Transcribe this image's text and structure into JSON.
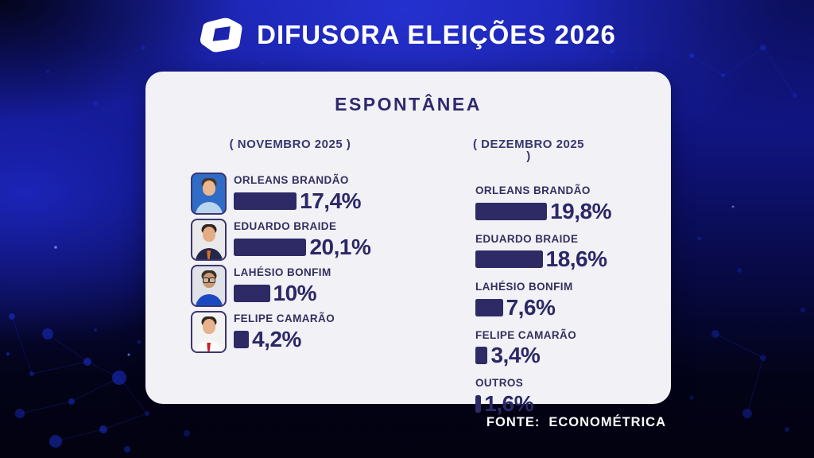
{
  "header": {
    "logo_name": "difusora-logo",
    "title": "DIFUSORA ELEIÇÕES 2026"
  },
  "card": {
    "title": "ESPONTÂNEA",
    "columns": [
      {
        "label": "( NOVEMBRO 2025 )",
        "rows": [
          {
            "name": "ORLEANS BRANDÃO",
            "value": 17.4,
            "value_label": "17,4%",
            "photo": {
              "bg": "#2f6cc8",
              "skin": "#e9b891",
              "hair": "#4a3627",
              "shirt": "#b8d4ee",
              "tie": "",
              "glasses": false
            }
          },
          {
            "name": "EDUARDO BRAIDE",
            "value": 20.1,
            "value_label": "20,1%",
            "photo": {
              "bg": "#e9e9ec",
              "skin": "#e2ac84",
              "hair": "#2e2420",
              "shirt": "#23274b",
              "tie": "#e0701e",
              "glasses": false
            }
          },
          {
            "name": "LAHÉSIO BONFIM",
            "value": 10,
            "value_label": "10%",
            "photo": {
              "bg": "#dfe2e6",
              "skin": "#c89a76",
              "hair": "#3a2e26",
              "shirt": "#1c49c0",
              "tie": "",
              "glasses": true
            }
          },
          {
            "name": "FELIPE CAMARÃO",
            "value": 4.2,
            "value_label": "4,2%",
            "photo": {
              "bg": "#f2f2f2",
              "skin": "#e7b28c",
              "hair": "#33271f",
              "shirt": "#fbfbfb",
              "tie": "#d21f2a",
              "glasses": false
            }
          }
        ]
      },
      {
        "label": "( DEZEMBRO 2025 )",
        "rows": [
          {
            "name": "ORLEANS BRANDÃO",
            "value": 19.8,
            "value_label": "19,8%"
          },
          {
            "name": "EDUARDO BRAIDE",
            "value": 18.6,
            "value_label": "18,6%"
          },
          {
            "name": "LAHÉSIO BONFIM",
            "value": 7.6,
            "value_label": "7,6%"
          },
          {
            "name": "FELIPE CAMARÃO",
            "value": 3.4,
            "value_label": "3,4%"
          },
          {
            "name": "OUTROS",
            "value": 1.6,
            "value_label": "1,6%"
          }
        ]
      }
    ]
  },
  "footer": {
    "source_label": "FONTE:",
    "source_value": "ECONOMÉTRICA"
  },
  "colors": {
    "accent_navy": "#2e2a66",
    "card_bg": "#f1f1f6",
    "background_blue": "#1a23b5",
    "text_white": "#ffffff"
  },
  "chart_data": {
    "type": "bar",
    "orientation": "horizontal",
    "title": "ESPONTÂNEA",
    "unit": "%",
    "categories": [
      "ORLEANS BRANDÃO",
      "EDUARDO BRAIDE",
      "LAHÉSIO BONFIM",
      "FELIPE CAMARÃO",
      "OUTROS"
    ],
    "series": [
      {
        "name": "NOVEMBRO 2025",
        "values": [
          17.4,
          20.1,
          10,
          4.2,
          null
        ]
      },
      {
        "name": "DEZEMBRO 2025",
        "values": [
          19.8,
          18.6,
          7.6,
          3.4,
          1.6
        ]
      }
    ],
    "legend_position": "column-headers",
    "grid": false,
    "source": "ECONOMÉTRICA"
  }
}
